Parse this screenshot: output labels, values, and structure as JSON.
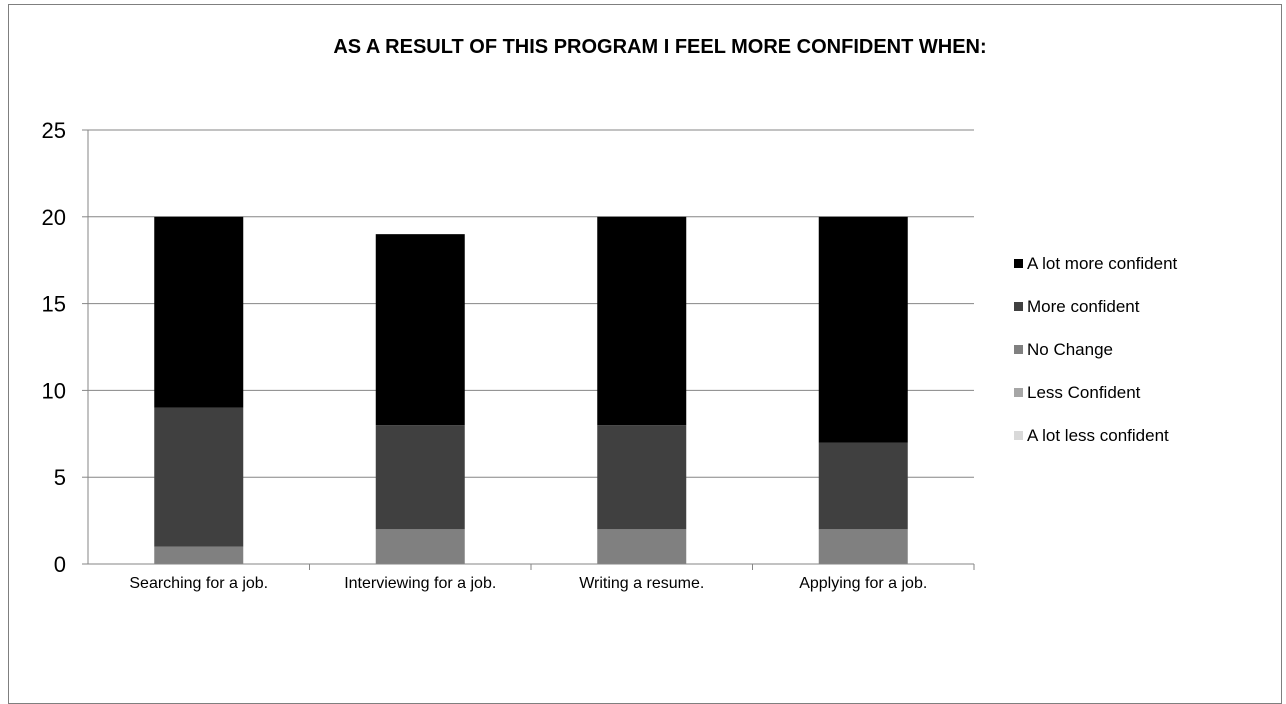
{
  "chart_data": {
    "type": "bar",
    "stacked": true,
    "title": "AS A RESULT OF THIS PROGRAM I FEEL MORE CONFIDENT WHEN:",
    "xlabel": "",
    "ylabel": "",
    "ylim": [
      0,
      25
    ],
    "yticks": [
      0,
      5,
      10,
      15,
      20,
      25
    ],
    "grid": true,
    "legend_position": "right",
    "categories": [
      "Searching for a job.",
      "Interviewing for a job.",
      "Writing a resume.",
      "Applying for a job."
    ],
    "series": [
      {
        "name": "A lot less confident",
        "color": "#d9d9d9",
        "values": [
          0,
          0,
          0,
          0
        ]
      },
      {
        "name": "Less Confident",
        "color": "#a6a6a6",
        "values": [
          0,
          0,
          0,
          0
        ]
      },
      {
        "name": "No Change",
        "color": "#808080",
        "values": [
          1,
          2,
          2,
          2
        ]
      },
      {
        "name": "More confident",
        "color": "#404040",
        "values": [
          8,
          6,
          6,
          5
        ]
      },
      {
        "name": "A lot more confident",
        "color": "#000000",
        "values": [
          11,
          11,
          12,
          13
        ]
      }
    ]
  }
}
